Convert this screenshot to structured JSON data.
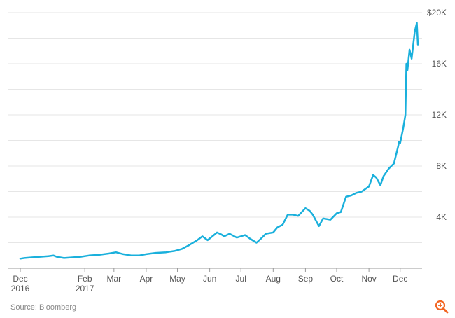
{
  "chart_data": {
    "type": "line",
    "title": "",
    "xlabel": "",
    "ylabel": "",
    "x_ticks": [
      {
        "date": "2016-12-01",
        "lines": [
          "Dec",
          "2016"
        ]
      },
      {
        "date": "2017-02-01",
        "lines": [
          "Feb",
          "2017"
        ]
      },
      {
        "date": "2017-03-01",
        "lines": [
          "Mar"
        ]
      },
      {
        "date": "2017-04-01",
        "lines": [
          "Apr"
        ]
      },
      {
        "date": "2017-05-01",
        "lines": [
          "May"
        ]
      },
      {
        "date": "2017-06-01",
        "lines": [
          "Jun"
        ]
      },
      {
        "date": "2017-07-01",
        "lines": [
          "Jul"
        ]
      },
      {
        "date": "2017-08-01",
        "lines": [
          "Aug"
        ]
      },
      {
        "date": "2017-09-01",
        "lines": [
          "Sep"
        ]
      },
      {
        "date": "2017-10-01",
        "lines": [
          "Oct"
        ]
      },
      {
        "date": "2017-11-01",
        "lines": [
          "Nov"
        ]
      },
      {
        "date": "2017-12-01",
        "lines": [
          "Dec"
        ]
      }
    ],
    "y_ticks": [
      {
        "value": 20000,
        "label": "$20K"
      },
      {
        "value": 16000,
        "label": "16K"
      },
      {
        "value": 12000,
        "label": "12K"
      },
      {
        "value": 8000,
        "label": "8K"
      },
      {
        "value": 4000,
        "label": "4K"
      }
    ],
    "ylim": [
      0,
      20000
    ],
    "xlim": [
      "2016-12-01",
      "2017-12-18"
    ],
    "grid": true,
    "series": [
      {
        "color": "#1ab0dc",
        "x": [
          "2016-12-01",
          "2016-12-05",
          "2016-12-12",
          "2016-12-20",
          "2016-12-28",
          "2017-01-02",
          "2017-01-05",
          "2017-01-12",
          "2017-01-20",
          "2017-01-28",
          "2017-02-05",
          "2017-02-15",
          "2017-02-24",
          "2017-03-03",
          "2017-03-10",
          "2017-03-18",
          "2017-03-25",
          "2017-04-01",
          "2017-04-10",
          "2017-04-20",
          "2017-04-28",
          "2017-05-05",
          "2017-05-12",
          "2017-05-20",
          "2017-05-25",
          "2017-05-30",
          "2017-06-05",
          "2017-06-08",
          "2017-06-12",
          "2017-06-15",
          "2017-06-20",
          "2017-06-27",
          "2017-07-05",
          "2017-07-10",
          "2017-07-16",
          "2017-07-20",
          "2017-07-25",
          "2017-08-01",
          "2017-08-05",
          "2017-08-10",
          "2017-08-15",
          "2017-08-20",
          "2017-08-25",
          "2017-09-01",
          "2017-09-05",
          "2017-09-08",
          "2017-09-14",
          "2017-09-18",
          "2017-09-25",
          "2017-10-01",
          "2017-10-05",
          "2017-10-10",
          "2017-10-15",
          "2017-10-20",
          "2017-10-25",
          "2017-11-01",
          "2017-11-05",
          "2017-11-08",
          "2017-11-12",
          "2017-11-15",
          "2017-11-20",
          "2017-11-25",
          "2017-11-29",
          "2017-11-30",
          "2017-12-01",
          "2017-12-04",
          "2017-12-06",
          "2017-12-07",
          "2017-12-08",
          "2017-12-10",
          "2017-12-12",
          "2017-12-15",
          "2017-12-17",
          "2017-12-18"
        ],
        "y": [
          750,
          800,
          850,
          900,
          950,
          1000,
          900,
          800,
          850,
          900,
          1000,
          1050,
          1150,
          1250,
          1100,
          1000,
          1000,
          1100,
          1200,
          1250,
          1350,
          1500,
          1800,
          2200,
          2500,
          2200,
          2600,
          2800,
          2650,
          2500,
          2700,
          2400,
          2600,
          2300,
          2000,
          2300,
          2700,
          2800,
          3200,
          3400,
          4200,
          4200,
          4100,
          4700,
          4500,
          4200,
          3300,
          3900,
          3800,
          4300,
          4400,
          5600,
          5700,
          5900,
          6000,
          6400,
          7300,
          7100,
          6500,
          7200,
          7800,
          8200,
          9500,
          9900,
          9800,
          11000,
          12000,
          16000,
          15500,
          17100,
          16400,
          18500,
          19200,
          17500
        ]
      }
    ]
  },
  "footer": {
    "source": "Source: Bloomberg",
    "zoom_icon": "zoom-in-icon"
  },
  "colors": {
    "line": "#1ab0dc",
    "grid": "#e6e6e6",
    "zoom": "#f26522"
  }
}
